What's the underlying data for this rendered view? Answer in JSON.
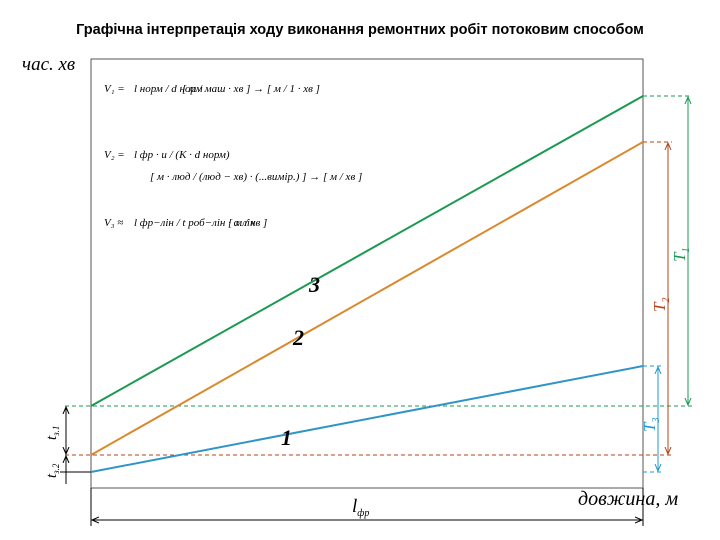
{
  "header": {
    "title": "Графічна інтерпретація ходу виконання ремонтних робіт потоковим способом"
  },
  "axes": {
    "y_label": "час. хв",
    "x_label": "довжина, м"
  },
  "formulas": [
    {
      "lhs": "V₁ =",
      "expr": "l норм / d норм",
      "units": "[ м / маш · хв ] → [ м / 1 · хв ]"
    },
    {
      "lhs": "V₂ =",
      "expr": "l фр · и / (K · d норм)",
      "units": "[ м · люд / (люд − хв) · (...вимір.) ] → [ м / хв ]"
    },
    {
      "lhs": "V₃ ≈",
      "expr": "l фр−лін / t роб−лін · α лін",
      "units": "[ м / хв ]"
    }
  ],
  "lines": [
    {
      "label": "1"
    },
    {
      "label": "2"
    },
    {
      "label": "3"
    }
  ],
  "dimensions": {
    "T1": {
      "main": "T",
      "sub": "1"
    },
    "T2": {
      "main": "T",
      "sub": "2"
    },
    "T3": {
      "main": "T",
      "sub": "3"
    },
    "t1": {
      "main": "t",
      "sub": "з.1"
    },
    "t2": {
      "main": "t",
      "sub": "з.2"
    },
    "length": {
      "main": "l",
      "sub": "фр"
    }
  }
}
